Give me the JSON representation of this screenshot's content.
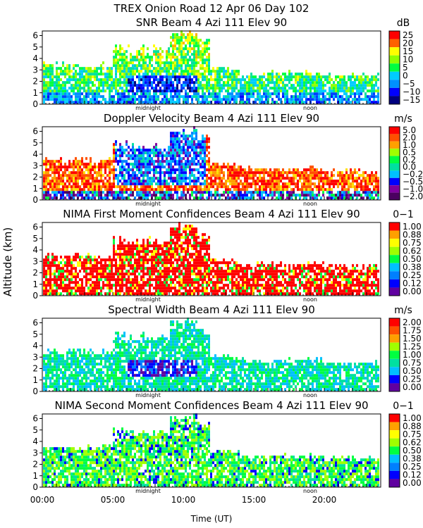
{
  "figure": {
    "title": "TREX Onion Road  12 Apr 06 Day 102",
    "ylabel": "Altitude (km)",
    "xlabel": "Time (UT)",
    "x_ticks": [
      "00:00",
      "05:00",
      "10:00",
      "15:00",
      "20:00"
    ],
    "midnight_label": "midnight",
    "noon_label": "noon"
  },
  "colors": {
    "snr": [
      "#00007f",
      "#0000ff",
      "#0040ff",
      "#0090ff",
      "#00ccff",
      "#00e0a0",
      "#00ff40",
      "#90ff00",
      "#ffff00",
      "#ffb000",
      "#ff6000",
      "#ff0000"
    ],
    "doppler": [
      "#4b0060",
      "#8000a0",
      "#0000ff",
      "#0080ff",
      "#00c0ff",
      "#00e0a0",
      "#00ff40",
      "#a0ff00",
      "#ffe000",
      "#ffa000",
      "#ff5000",
      "#ff0000"
    ],
    "conf": [
      "#6000a0",
      "#0000ff",
      "#0080ff",
      "#00c0ff",
      "#00e0a0",
      "#00ff40",
      "#a0ff00",
      "#ffff00",
      "#ffa000",
      "#ff0000"
    ],
    "width": [
      "#6000a0",
      "#0000ff",
      "#0080ff",
      "#00c0ff",
      "#00e0a0",
      "#00ff40",
      "#a0ff00",
      "#ffff00",
      "#ffa000",
      "#ff5000",
      "#ff0000"
    ]
  },
  "chart_data": [
    {
      "type": "heatmap",
      "title": "SNR Beam 4 Azi 111 Elev 90",
      "unit": "dB",
      "x_range": [
        "00:00",
        "24:00"
      ],
      "ylim": [
        0,
        6.4
      ],
      "y_ticks": [
        "0",
        "1",
        "2",
        "3",
        "4",
        "5",
        "6"
      ],
      "colorbar": [
        "25",
        "20",
        "15",
        "10",
        "5",
        "0",
        "−5",
        "−10",
        "−15"
      ],
      "palette": "snr"
    },
    {
      "type": "heatmap",
      "title": "Doppler Velocity Beam 4 Azi 111 Elev 90",
      "unit": "m/s",
      "x_range": [
        "00:00",
        "24:00"
      ],
      "ylim": [
        0,
        6.4
      ],
      "y_ticks": [
        "0",
        "1",
        "2",
        "3",
        "4",
        "5",
        "6"
      ],
      "colorbar": [
        "5.0",
        "2.0",
        "1.0",
        "0.5",
        "0.2",
        "0.0",
        "−0.2",
        "−0.5",
        "−1.0",
        "−2.0"
      ],
      "palette": "doppler"
    },
    {
      "type": "heatmap",
      "title": "NIMA First Moment Confidences Beam 4 Azi 111 Elev 90",
      "unit": "0−1",
      "x_range": [
        "00:00",
        "24:00"
      ],
      "ylim": [
        0,
        6.4
      ],
      "y_ticks": [
        "0",
        "1",
        "2",
        "3",
        "4",
        "5",
        "6"
      ],
      "colorbar": [
        "1.00",
        "0.88",
        "0.75",
        "0.62",
        "0.50",
        "0.38",
        "0.25",
        "0.12",
        "0.00"
      ],
      "palette": "conf"
    },
    {
      "type": "heatmap",
      "title": "Spectral Width Beam 4 Azi 111 Elev 90",
      "unit": "m/s",
      "x_range": [
        "00:00",
        "24:00"
      ],
      "ylim": [
        0,
        6.4
      ],
      "y_ticks": [
        "0",
        "1",
        "2",
        "3",
        "4",
        "5",
        "6"
      ],
      "colorbar": [
        "2.00",
        "1.75",
        "1.50",
        "1.25",
        "1.00",
        "0.75",
        "0.50",
        "0.25",
        "0.00"
      ],
      "palette": "width"
    },
    {
      "type": "heatmap",
      "title": "NIMA Second Moment Confidences Beam 4 Azi 111 Elev 90",
      "unit": "0−1",
      "x_range": [
        "00:00",
        "24:00"
      ],
      "ylim": [
        0,
        6.4
      ],
      "y_ticks": [
        "0",
        "1",
        "2",
        "3",
        "4",
        "5",
        "6"
      ],
      "colorbar": [
        "1.00",
        "0.88",
        "0.75",
        "0.62",
        "0.50",
        "0.38",
        "0.25",
        "0.12",
        "0.00"
      ],
      "palette": "conf"
    }
  ]
}
